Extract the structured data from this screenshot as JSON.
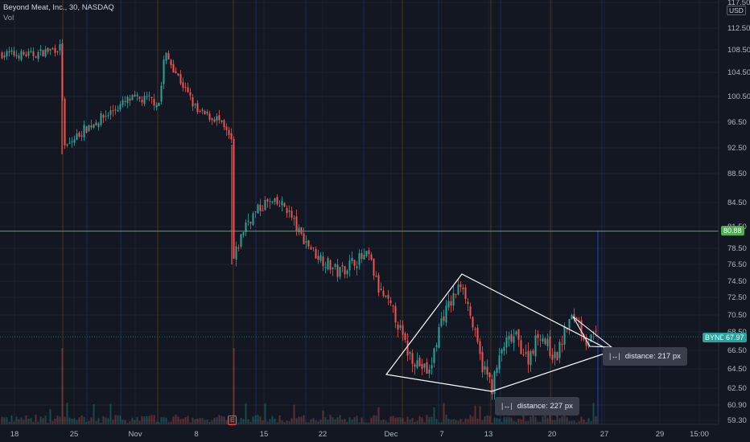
{
  "legend": {
    "title": "Beyond Meat, Inc., 30, NASDAQ",
    "vol_label": "Vol"
  },
  "price_scale": {
    "currency": "USD",
    "ticks": [
      "117.50",
      "112.50",
      "108.50",
      "104.50",
      "100.50",
      "96.50",
      "92.50",
      "88.50",
      "84.50",
      "81.50",
      "78.50",
      "76.50",
      "74.50",
      "72.50",
      "70.50",
      "68.50",
      "66.50",
      "64.50",
      "62.50",
      "60.90",
      "59.30"
    ],
    "level_tag": "80.88",
    "symbol_tag": "BYND",
    "price_tag": "67.97"
  },
  "time_scale": {
    "labels": [
      "18",
      "25",
      "Nov",
      "8",
      "15",
      "22",
      "Dec",
      "7",
      "13",
      "20",
      "27",
      "29",
      "15:00"
    ]
  },
  "earnings_marker": "E",
  "drawings": {
    "tooltip_1": "distance: 227 px",
    "tooltip_2": "distance: 217 px"
  },
  "colors": {
    "background": "#131722",
    "up": "#26a69a",
    "down": "#ef5350",
    "horizontal_line": "#4caf50",
    "drawing": "#ffffff",
    "session_line_orange": "#ff9800",
    "session_line_blue": "#2962ff"
  },
  "chart_data": {
    "type": "candlestick",
    "title": "Beyond Meat, Inc., 30, NASDAQ",
    "ylim": [
      59.3,
      117.5
    ],
    "horizontal_level": 80.88,
    "last_price": 67.97,
    "close_path": [
      {
        "x": 0,
        "y": 107.8
      },
      {
        "x": 40,
        "y": 107.6
      },
      {
        "x": 76,
        "y": 109.0
      },
      {
        "x": 78,
        "y": 92.0
      },
      {
        "x": 100,
        "y": 95.0
      },
      {
        "x": 130,
        "y": 97.5
      },
      {
        "x": 160,
        "y": 100.0
      },
      {
        "x": 185,
        "y": 100.0
      },
      {
        "x": 198,
        "y": 99.5
      },
      {
        "x": 204,
        "y": 108.0
      },
      {
        "x": 220,
        "y": 104.0
      },
      {
        "x": 245,
        "y": 98.0
      },
      {
        "x": 270,
        "y": 97.0
      },
      {
        "x": 287,
        "y": 93.5
      },
      {
        "x": 290,
        "y": 77.0
      },
      {
        "x": 305,
        "y": 82.0
      },
      {
        "x": 330,
        "y": 84.5
      },
      {
        "x": 355,
        "y": 84.0
      },
      {
        "x": 372,
        "y": 80.5
      },
      {
        "x": 390,
        "y": 78.0
      },
      {
        "x": 420,
        "y": 75.5
      },
      {
        "x": 440,
        "y": 77.0
      },
      {
        "x": 458,
        "y": 77.5
      },
      {
        "x": 470,
        "y": 73.5
      },
      {
        "x": 490,
        "y": 70.5
      },
      {
        "x": 505,
        "y": 66.5
      },
      {
        "x": 520,
        "y": 65.0
      },
      {
        "x": 533,
        "y": 64.0
      },
      {
        "x": 548,
        "y": 70.0
      },
      {
        "x": 560,
        "y": 72.0
      },
      {
        "x": 574,
        "y": 74.5
      },
      {
        "x": 590,
        "y": 68.0
      },
      {
        "x": 598,
        "y": 65.0
      },
      {
        "x": 611,
        "y": 62.7
      },
      {
        "x": 625,
        "y": 67.0
      },
      {
        "x": 640,
        "y": 68.0
      },
      {
        "x": 655,
        "y": 65.5
      },
      {
        "x": 670,
        "y": 68.5
      },
      {
        "x": 690,
        "y": 65.5
      },
      {
        "x": 705,
        "y": 69.5
      },
      {
        "x": 715,
        "y": 70.5
      },
      {
        "x": 728,
        "y": 67.5
      },
      {
        "x": 740,
        "y": 68.0
      }
    ]
  }
}
